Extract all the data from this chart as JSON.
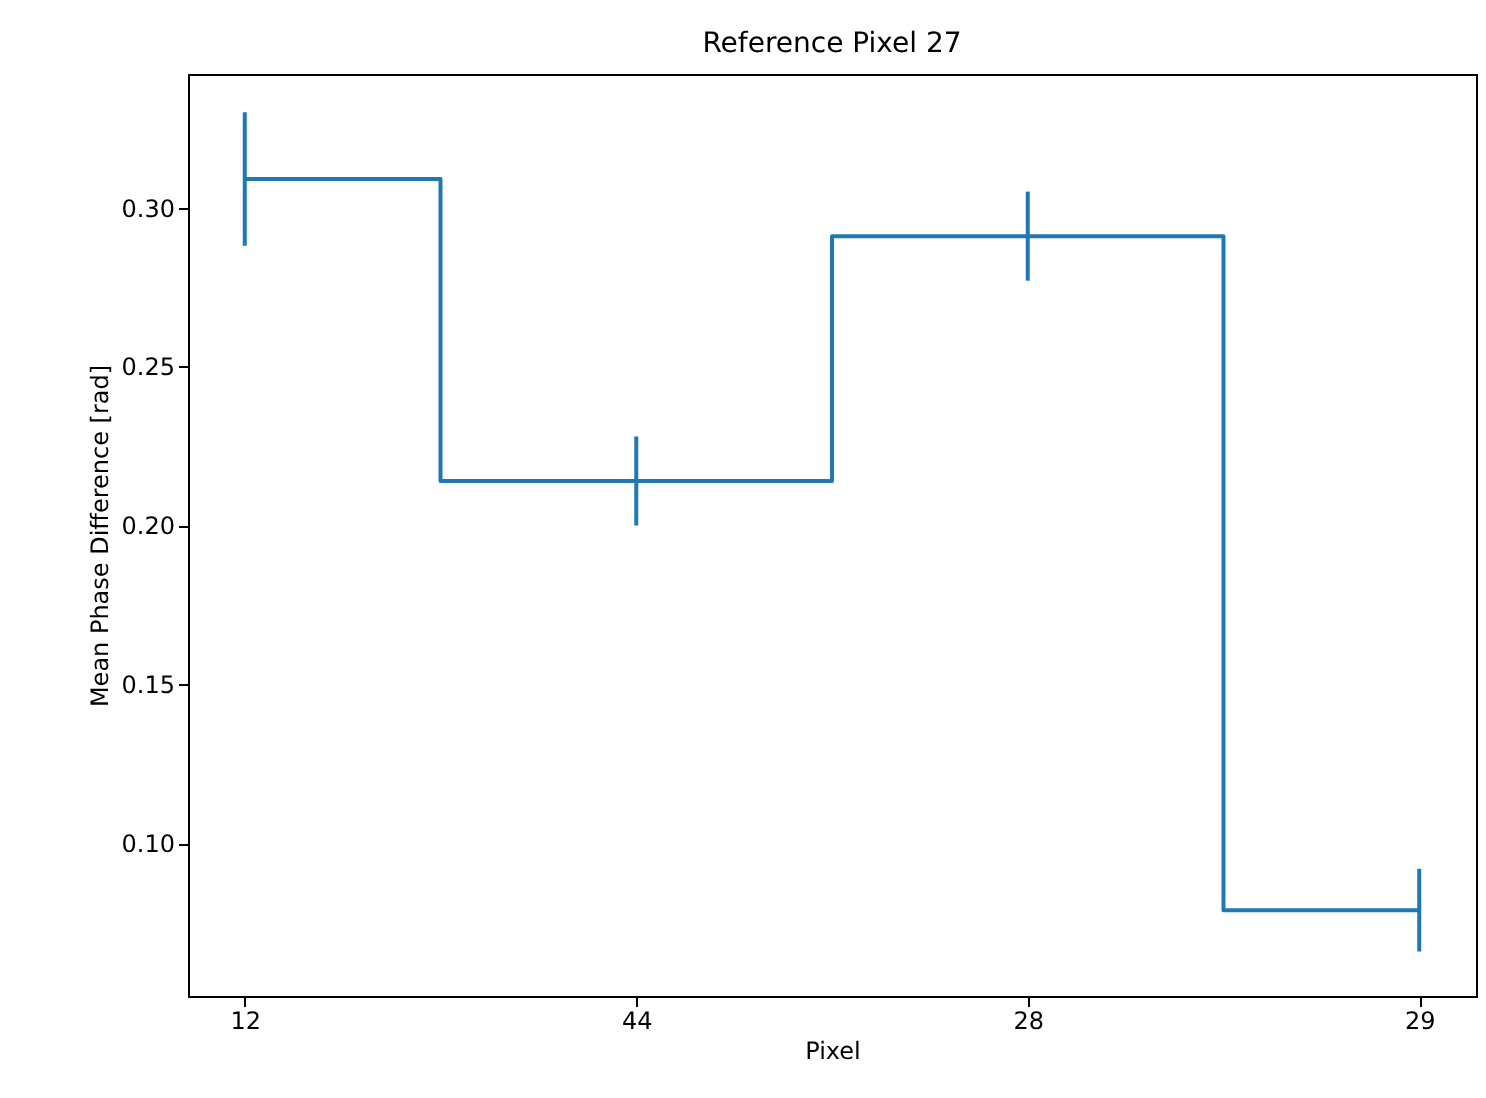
{
  "chart_data": {
    "type": "step",
    "title": "Reference Pixel 27",
    "xlabel": "Pixel",
    "ylabel": "Mean Phase Difference [rad]",
    "categories": [
      "12",
      "44",
      "28",
      "29"
    ],
    "series": [
      {
        "color": "#1f77b4",
        "values": [
          0.309,
          0.214,
          0.291,
          0.079
        ],
        "errors": [
          0.021,
          0.014,
          0.014,
          0.013
        ]
      }
    ],
    "ylim": [
      0.052,
      0.342
    ],
    "yticks": [
      {
        "value": 0.1,
        "label": "0.10"
      },
      {
        "value": 0.15,
        "label": "0.15"
      },
      {
        "value": 0.2,
        "label": "0.20"
      },
      {
        "value": 0.25,
        "label": "0.25"
      },
      {
        "value": 0.3,
        "label": "0.30"
      }
    ],
    "grid": false
  }
}
